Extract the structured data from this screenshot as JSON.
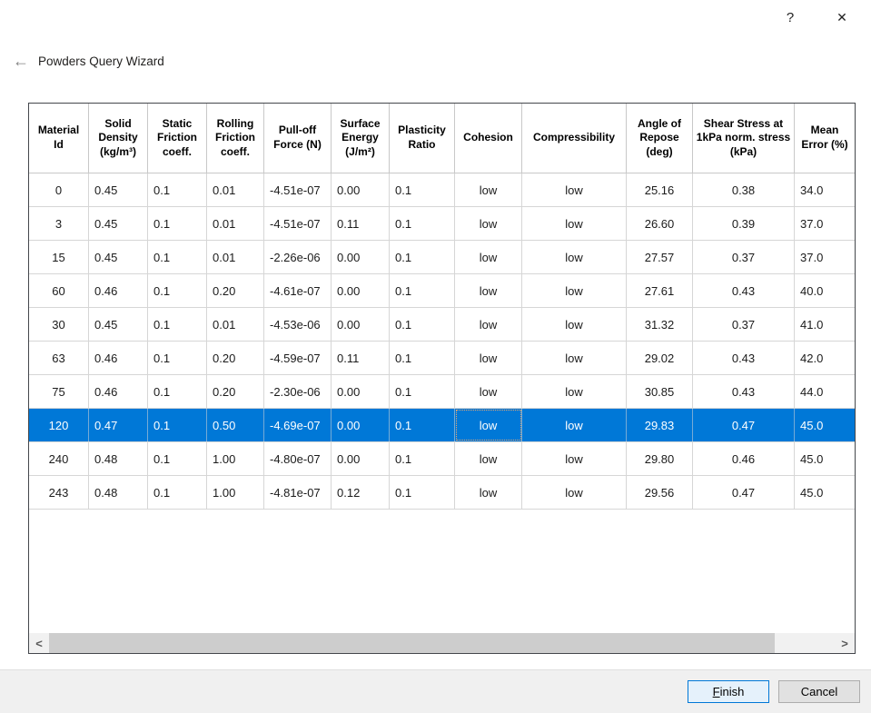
{
  "window": {
    "help_icon": "?",
    "close_icon": "✕"
  },
  "wizard": {
    "back_icon": "←",
    "title": "Powders Query Wizard"
  },
  "table": {
    "columns": [
      {
        "label": "Material Id"
      },
      {
        "label": "Solid Density (kg/m³)"
      },
      {
        "label": "Static Friction coeff."
      },
      {
        "label": "Rolling Friction coeff."
      },
      {
        "label": "Pull-off Force (N)"
      },
      {
        "label": "Surface Energy (J/m²)"
      },
      {
        "label": "Plasticity Ratio"
      },
      {
        "label": "Cohesion"
      },
      {
        "label": "Compressibility"
      },
      {
        "label": "Angle of Repose (deg)"
      },
      {
        "label": "Shear Stress at 1kPa norm. stress (kPa)"
      },
      {
        "label": "Mean Error (%)"
      }
    ],
    "rows": [
      {
        "cells": [
          "0",
          "0.45",
          "0.1",
          "0.01",
          "-4.51e-07",
          "0.00",
          "0.1",
          "low",
          "low",
          "25.16",
          "0.38",
          "34.0"
        ]
      },
      {
        "cells": [
          "3",
          "0.45",
          "0.1",
          "0.01",
          "-4.51e-07",
          "0.11",
          "0.1",
          "low",
          "low",
          "26.60",
          "0.39",
          "37.0"
        ]
      },
      {
        "cells": [
          "15",
          "0.45",
          "0.1",
          "0.01",
          "-2.26e-06",
          "0.00",
          "0.1",
          "low",
          "low",
          "27.57",
          "0.37",
          "37.0"
        ]
      },
      {
        "cells": [
          "60",
          "0.46",
          "0.1",
          "0.20",
          "-4.61e-07",
          "0.00",
          "0.1",
          "low",
          "low",
          "27.61",
          "0.43",
          "40.0"
        ]
      },
      {
        "cells": [
          "30",
          "0.45",
          "0.1",
          "0.01",
          "-4.53e-06",
          "0.00",
          "0.1",
          "low",
          "low",
          "31.32",
          "0.37",
          "41.0"
        ]
      },
      {
        "cells": [
          "63",
          "0.46",
          "0.1",
          "0.20",
          "-4.59e-07",
          "0.11",
          "0.1",
          "low",
          "low",
          "29.02",
          "0.43",
          "42.0"
        ]
      },
      {
        "cells": [
          "75",
          "0.46",
          "0.1",
          "0.20",
          "-2.30e-06",
          "0.00",
          "0.1",
          "low",
          "low",
          "30.85",
          "0.43",
          "44.0"
        ]
      },
      {
        "cells": [
          "120",
          "0.47",
          "0.1",
          "0.50",
          "-4.69e-07",
          "0.00",
          "0.1",
          "low",
          "low",
          "29.83",
          "0.47",
          "45.0"
        ]
      },
      {
        "cells": [
          "240",
          "0.48",
          "0.1",
          "1.00",
          "-4.80e-07",
          "0.00",
          "0.1",
          "low",
          "low",
          "29.80",
          "0.46",
          "45.0"
        ]
      },
      {
        "cells": [
          "243",
          "0.48",
          "0.1",
          "1.00",
          "-4.81e-07",
          "0.12",
          "0.1",
          "low",
          "low",
          "29.56",
          "0.47",
          "45.0"
        ]
      }
    ],
    "selected_row_index": 7,
    "selected_material_id": "120",
    "focused_column_index": 7
  },
  "scrollbar": {
    "left_icon": "<",
    "right_icon": ">"
  },
  "footer": {
    "finish_mnemonic": "F",
    "finish_rest": "inish",
    "cancel_label": "Cancel"
  },
  "colors": {
    "selection": "#0078d7",
    "selection_text": "#ffffff",
    "finish_border": "#0078d7",
    "finish_bg": "#e5f1fb"
  }
}
